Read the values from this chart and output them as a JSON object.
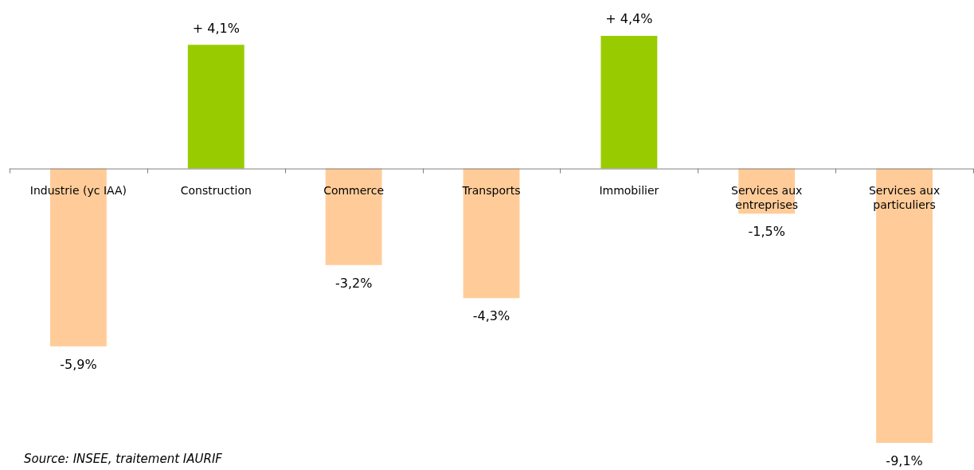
{
  "chart_data": {
    "type": "bar",
    "categories": [
      "Industrie (yc IAA)",
      "Construction",
      "Commerce",
      "Transports",
      "Immobilier",
      "Services aux entreprises",
      "Services aux particuliers"
    ],
    "values": [
      -5.9,
      4.1,
      -3.2,
      -4.3,
      4.4,
      -1.5,
      -9.1
    ],
    "colors": [
      "#ffcc99",
      "#99cc00",
      "#ffcc99",
      "#ffcc99",
      "#99cc00",
      "#ffcc99",
      "#ffcc99"
    ],
    "value_labels": [
      "-5,9%",
      "+ 4,1%",
      "-3,2%",
      "-4,3%",
      "+ 4,4%",
      "-1,5%",
      "-9,1%"
    ],
    "annotations": [
      "Source: INSEE, traitement IAURIF"
    ]
  }
}
